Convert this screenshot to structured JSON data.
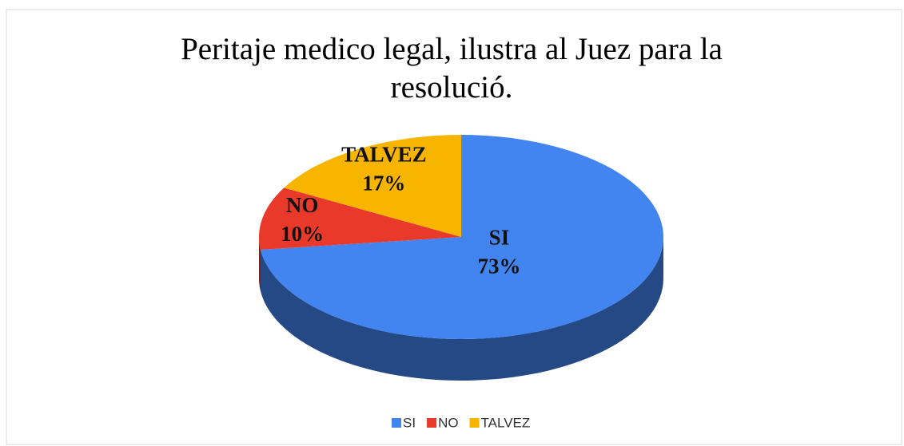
{
  "chart_data": {
    "type": "pie",
    "title": "Peritaje medico legal, ilustra al Juez  para la resolució.",
    "categories": [
      "SI",
      "NO",
      "TALVEZ"
    ],
    "values": [
      73,
      10,
      17
    ],
    "value_labels": [
      "73%",
      "10%",
      "17%"
    ],
    "colors": [
      "#4285f0",
      "#e8392a",
      "#f7b500"
    ],
    "legend": "bottom"
  }
}
